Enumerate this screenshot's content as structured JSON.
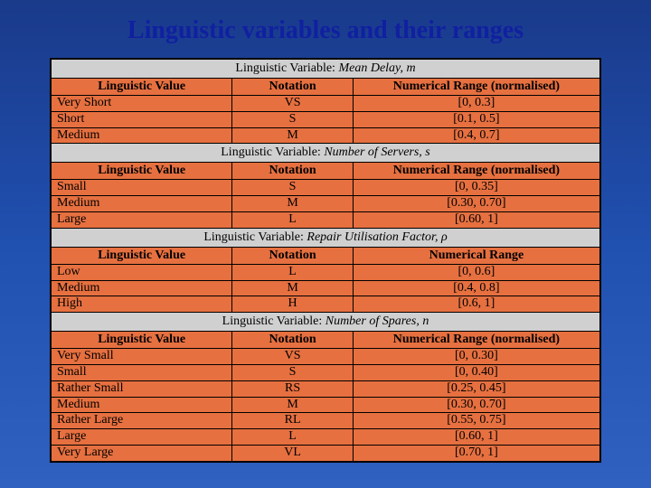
{
  "title": "Linguistic variables and their ranges",
  "colors": {
    "table_bg": "#e67040",
    "section_bg": "#d0d0d0",
    "title_color": "#1020a0",
    "bg_gradient_top": "#1a3a8a",
    "bg_gradient_bottom": "#3060c0"
  },
  "layout": {
    "col_widths_pct": [
      33,
      22,
      45
    ],
    "title_fontsize_pt": 21,
    "cell_fontsize_pt": 10.5
  },
  "column_headers": {
    "c1": "Linguistic Value",
    "c2": "Notation",
    "c3_norm": "Numerical Range (normalised)",
    "c3": "Numerical Range"
  },
  "sections": [
    {
      "var_label": "Linguistic Variable:",
      "var_name_html": "Mean Delay, m",
      "c3_key": "c3_norm",
      "rows": [
        {
          "value": "Very Short",
          "notation": "VS",
          "range": "[0, 0.3]"
        },
        {
          "value": "Short",
          "notation": "S",
          "range": "[0.1, 0.5]"
        },
        {
          "value": "Medium",
          "notation": "M",
          "range": "[0.4, 0.7]"
        }
      ]
    },
    {
      "var_label": "Linguistic Variable:",
      "var_name_html": "Number of Servers, s",
      "c3_key": "c3_norm",
      "rows": [
        {
          "value": "Small",
          "notation": "S",
          "range": "[0, 0.35]"
        },
        {
          "value": "Medium",
          "notation": "M",
          "range": "[0.30, 0.70]"
        },
        {
          "value": "Large",
          "notation": "L",
          "range": "[0.60, 1]"
        }
      ]
    },
    {
      "var_label": "Linguistic Variable:",
      "var_name_html": "Repair Utilisation Factor, ρ",
      "c3_key": "c3",
      "rows": [
        {
          "value": "Low",
          "notation": "L",
          "range": "[0, 0.6]"
        },
        {
          "value": "Medium",
          "notation": "M",
          "range": "[0.4, 0.8]"
        },
        {
          "value": "High",
          "notation": "H",
          "range": "[0.6, 1]"
        }
      ]
    },
    {
      "var_label": "Linguistic Variable:",
      "var_name_html": "Number of Spares, n",
      "c3_key": "c3_norm",
      "rows": [
        {
          "value": "Very Small",
          "notation": "VS",
          "range": "[0, 0.30]"
        },
        {
          "value": "Small",
          "notation": "S",
          "range": "[0, 0.40]"
        },
        {
          "value": "Rather Small",
          "notation": "RS",
          "range": "[0.25, 0.45]"
        },
        {
          "value": "Medium",
          "notation": "M",
          "range": "[0.30, 0.70]"
        },
        {
          "value": "Rather Large",
          "notation": "RL",
          "range": "[0.55, 0.75]"
        },
        {
          "value": "Large",
          "notation": "L",
          "range": "[0.60, 1]"
        },
        {
          "value": "Very Large",
          "notation": "VL",
          "range": "[0.70, 1]"
        }
      ]
    }
  ]
}
